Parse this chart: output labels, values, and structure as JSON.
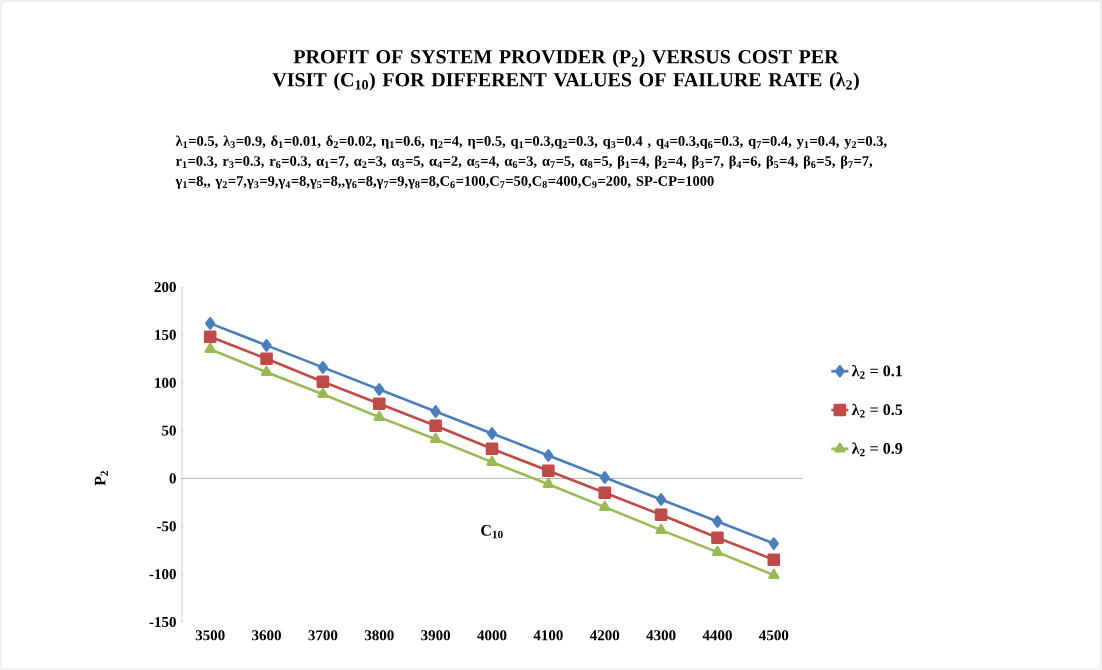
{
  "chart_data": {
    "type": "line",
    "title": "PROFIT OF SYSTEM PROVIDER (P$_{2}$) VERSUS COST PER VISIT (C$_{10}$) FOR DIFFERENT VALUES OF FAILURE RATE (λ$_{2}$)",
    "subtitle": "λ$_{1}$=0.5, λ$_{3}$=0.9, δ$_{1}$=0.01, δ$_{2}$=0.02, η$_{1}$=0.6, η$_{2}$=4, η=0.5, q$_{1}$=0.3,q$_{2}$=0.3, q$_{3}$=0.4 , q$_{4}$=0.3,q$_{6}$=0.3, q$_{7}$=0.4, y$_{1}$=0.4, y$_{2}$=0.3, r$_{1}$=0.3, r$_{3}$=0.3, r$_{6}$=0.3, α$_{1}$=7, α$_{2}$=3, α$_{3}$=5, α$_{4}$=2, α$_{5}$=4, α$_{6}$=3, α$_{7}$=5, α$_{8}$=5, β$_{1}$=4, β$_{2}$=4, β$_{3}$=7, β$_{4}$=6, β$_{5}$=4, β$_{6}$=5, β$_{7}$=7, γ$_{1}$=8,, γ$_{2}$=7,γ$_{3}$=9,γ$_{4}$=8,γ$_{5}$=8,,γ$_{6}$=8,γ$_{7}$=9,γ$_{8}$=8,C$_{6}$=100,C$_{7}$=50,C$_{8}$=400,C$_{9}$=200, SP-CP=1000",
    "xlabel": "C$_{10}$",
    "ylabel": "P$_{2}$",
    "categories": [
      "3500",
      "3600",
      "3700",
      "3800",
      "3900",
      "4000",
      "4100",
      "4200",
      "4300",
      "4400",
      "4500"
    ],
    "series": [
      {
        "name": "λ$_{2}$  = 0.1",
        "color": "#4a7ebb",
        "marker": "diamond",
        "values": [
          162,
          139,
          116,
          93,
          70,
          47,
          24,
          1,
          -22,
          -45,
          -68
        ]
      },
      {
        "name": "λ$_{2}$  = 0.5",
        "color": "#be4b48",
        "marker": "square",
        "values": [
          148,
          125,
          101,
          78,
          55,
          31,
          8,
          -15,
          -38,
          -62,
          -85
        ]
      },
      {
        "name": "λ$_{2}$  = 0.9",
        "color": "#98b954",
        "marker": "triangle",
        "values": [
          135,
          111,
          88,
          64,
          41,
          17,
          -6,
          -30,
          -54,
          -77,
          -101
        ]
      }
    ],
    "ylim": [
      -150,
      200
    ],
    "yticks": [
      -150,
      -100,
      -50,
      0,
      50,
      100,
      150,
      200
    ],
    "legend": "right",
    "grid": false,
    "ref_lines": [
      {
        "axis": "y",
        "value": 0,
        "color": "#a0a0a0"
      }
    ]
  }
}
